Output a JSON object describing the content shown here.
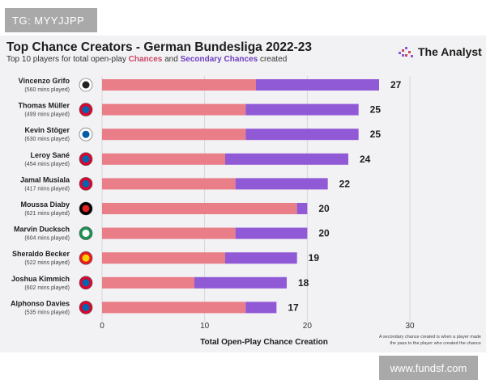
{
  "watermarks": {
    "top_left": "TG: MYYJJPP",
    "bottom_right": "www.fundsf.com"
  },
  "brand": {
    "name": "The Analyst",
    "icon": "analyst-logo-icon"
  },
  "header": {
    "title": "Top Chance Creators - German Bundesliga 2022-23",
    "subtitle_prefix": "Top 10 players for total open-play ",
    "subtitle_chances": "Chances",
    "subtitle_and": " and ",
    "subtitle_secondary": "Secondary Chances",
    "subtitle_suffix": " created"
  },
  "footnote": {
    "line1": "A secondary chance created is when a player made",
    "line2": "the pass to the player who created the chance"
  },
  "colors": {
    "chances": "#e97d88",
    "secondary": "#9059d6",
    "background": "#f2f1f3",
    "grid": "#d0cfd3"
  },
  "chart_data": {
    "type": "bar",
    "orientation": "horizontal",
    "stacked": true,
    "xlabel": "Total Open-Play Chance Creation",
    "xlim": [
      0,
      30
    ],
    "xticks": [
      0,
      10,
      20,
      30
    ],
    "grid": true,
    "categories": [
      {
        "name": "Vincenzo Grifo",
        "minutes": "(560 mins played)",
        "club_icon": "freiburg-crest-icon"
      },
      {
        "name": "Thomas Müller",
        "minutes": "(499 mins played)",
        "club_icon": "bayern-munich-crest-icon"
      },
      {
        "name": "Kevin Stöger",
        "minutes": "(630 mins played)",
        "club_icon": "bochum-crest-icon"
      },
      {
        "name": "Leroy Sané",
        "minutes": "(454 mins played)",
        "club_icon": "bayern-munich-crest-icon"
      },
      {
        "name": "Jamal Musiala",
        "minutes": "(417 mins played)",
        "club_icon": "bayern-munich-crest-icon"
      },
      {
        "name": "Moussa Diaby",
        "minutes": "(621 mins played)",
        "club_icon": "leverkusen-crest-icon"
      },
      {
        "name": "Marvin Ducksch",
        "minutes": "(604 mins played)",
        "club_icon": "werder-bremen-crest-icon"
      },
      {
        "name": "Sheraldo Becker",
        "minutes": "(522 mins played)",
        "club_icon": "union-berlin-crest-icon"
      },
      {
        "name": "Joshua Kimmich",
        "minutes": "(602 mins played)",
        "club_icon": "bayern-munich-crest-icon"
      },
      {
        "name": "Alphonso Davies",
        "minutes": "(535 mins played)",
        "club_icon": "bayern-munich-crest-icon"
      }
    ],
    "series": [
      {
        "name": "Chances",
        "values": [
          15,
          14,
          14,
          12,
          13,
          19,
          13,
          12,
          9,
          14
        ]
      },
      {
        "name": "Secondary Chances",
        "values": [
          12,
          11,
          11,
          12,
          9,
          1,
          7,
          7,
          9,
          3
        ]
      }
    ],
    "totals": [
      27,
      25,
      25,
      24,
      22,
      20,
      20,
      19,
      18,
      17
    ]
  }
}
